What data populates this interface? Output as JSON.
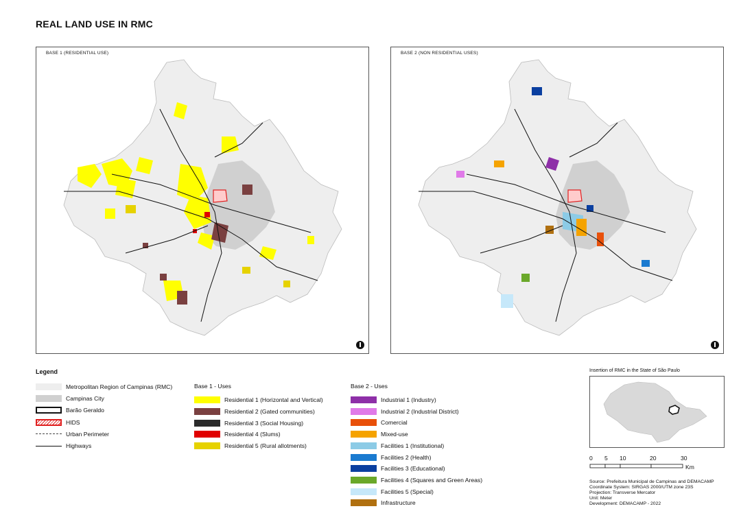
{
  "title": "REAL LAND USE IN RMC",
  "maps": {
    "left": {
      "label": "BASE 1  (RESIDENTIAL USE)"
    },
    "right": {
      "label": "BASE 2  (NON RESIDENTIAL USES)"
    }
  },
  "legend": {
    "title": "Legend",
    "general": [
      {
        "label": "Metropolitan Region of Campinas (RMC)",
        "color": "#eeeeee",
        "kind": "fill"
      },
      {
        "label": "Campinas City",
        "color": "#d0d0d0",
        "kind": "fill"
      },
      {
        "label": "Barão Geraldo",
        "color": "#ffffff",
        "kind": "outline"
      },
      {
        "label": "HIDS",
        "color": "#e02020",
        "kind": "hatch"
      },
      {
        "label": "Urban Perimeter",
        "color": "#444444",
        "kind": "dashed"
      },
      {
        "label": "Highways",
        "color": "#111111",
        "kind": "line"
      }
    ],
    "base1": {
      "title": "Base 1 - Uses",
      "items": [
        {
          "label": "Residential 1 (Horizontal and Vertical)",
          "color": "#ffff00"
        },
        {
          "label": "Residential 2 (Gated communities)",
          "color": "#7a4040"
        },
        {
          "label": "Residential 3 (Social Housing)",
          "color": "#2b2b2b"
        },
        {
          "label": "Residential 4 (Slums)",
          "color": "#e00000"
        },
        {
          "label": "Residential 5 (Rural allotments)",
          "color": "#e6d200"
        }
      ]
    },
    "base2": {
      "title": "Base 2 - Uses",
      "items": [
        {
          "label": "Industrial 1 (Industry)",
          "color": "#8e2fa8"
        },
        {
          "label": "Industrial 2 (Industrial District)",
          "color": "#e07ae8"
        },
        {
          "label": "Comercial",
          "color": "#e8500a"
        },
        {
          "label": "Mixed-use",
          "color": "#f5a300"
        },
        {
          "label": "Facilities 1 (Institutional)",
          "color": "#8ccbe6"
        },
        {
          "label": "Facilities 2 (Health)",
          "color": "#1a7ad0"
        },
        {
          "label": "Facilities 3 (Educational)",
          "color": "#0a3fa0"
        },
        {
          "label": "Facilities 4 (Squares and Green Areas)",
          "color": "#6aa82a"
        },
        {
          "label": "Facilities 5 (Special)",
          "color": "#c6e8fa"
        },
        {
          "label": "Infrastructure",
          "color": "#b07010"
        }
      ]
    }
  },
  "inset": {
    "title": "Insertion of RMC in the State of São Paulo"
  },
  "scale": {
    "ticks": [
      "0",
      "5",
      "10",
      "20",
      "30"
    ],
    "unit": "Km"
  },
  "credits": [
    "Source: Prefeitura Municipal de Campinas and DEMACAMP",
    "Coordinate System: SIRGAS 2000/UTM zone 23S",
    "Projection: Transverse Mercator",
    "Unit: Meter",
    "Development: DEMACAMP - 2022"
  ]
}
